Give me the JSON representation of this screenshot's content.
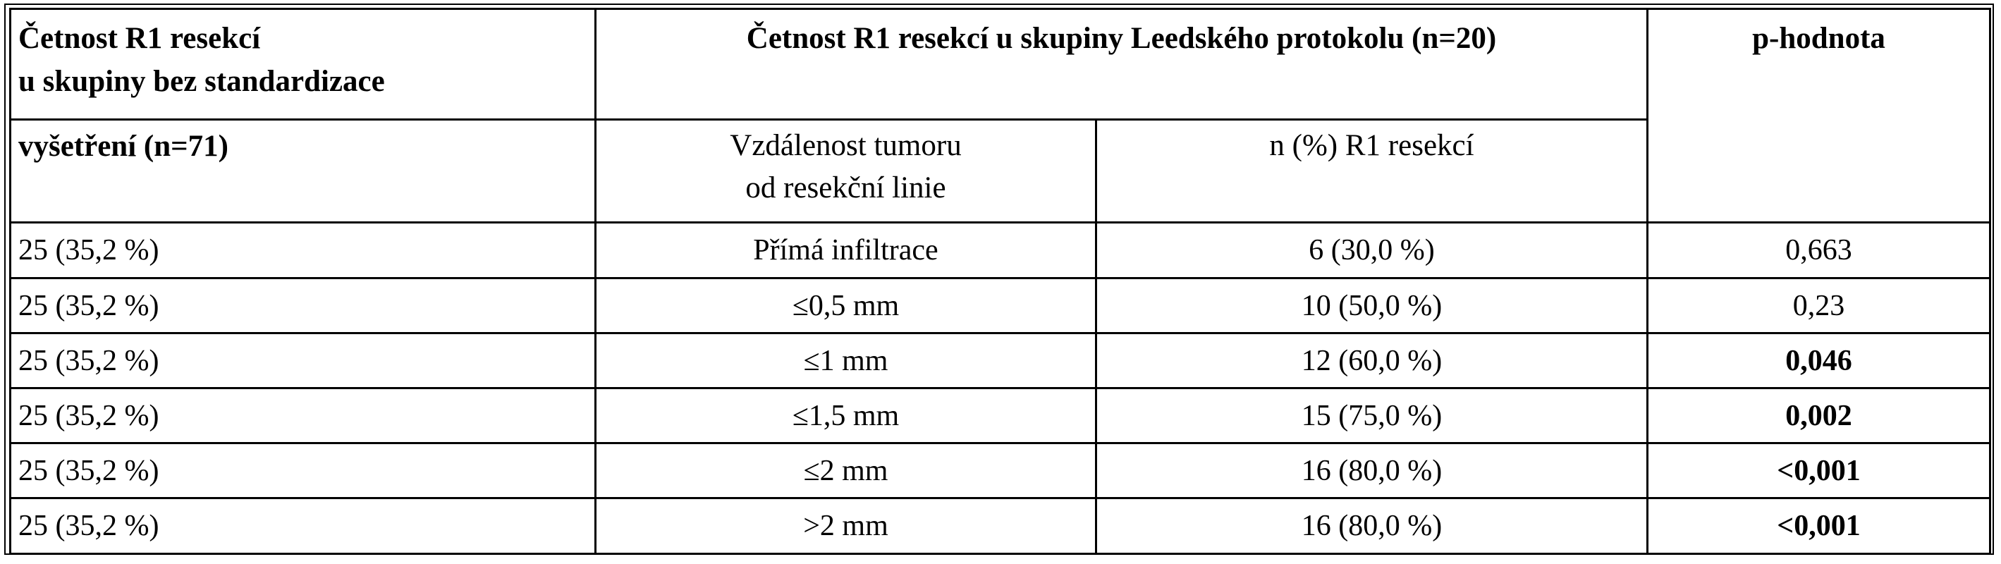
{
  "table": {
    "header": {
      "group1_line1": "Četnost R1 resekcí",
      "group1_line2": "u skupiny bez standardizace",
      "group1_line3": "vyšetření (n=71)",
      "group2": "Četnost R1 resekcí u skupiny Leedského protokolu (n=20)",
      "group3": "p-hodnota",
      "sub_distance_line1": "Vzdálenost tumoru",
      "sub_distance_line2": "od resekční linie",
      "sub_count": "n (%) R1 resekcí"
    },
    "rows": [
      {
        "no_std": "25 (35,2 %)",
        "distance": "Přímá infiltrace",
        "r1": "6 (30,0 %)",
        "p": "0,663",
        "p_bold": false
      },
      {
        "no_std": "25 (35,2 %)",
        "distance": "≤0,5 mm",
        "r1": "10 (50,0 %)",
        "p": "0,23",
        "p_bold": false
      },
      {
        "no_std": "25 (35,2 %)",
        "distance": "≤1 mm",
        "r1": "12 (60,0 %)",
        "p": "0,046",
        "p_bold": true
      },
      {
        "no_std": "25 (35,2 %)",
        "distance": "≤1,5 mm",
        "r1": "15 (75,0 %)",
        "p": "0,002",
        "p_bold": true
      },
      {
        "no_std": "25 (35,2 %)",
        "distance": "≤2 mm",
        "r1": "16 (80,0 %)",
        "p": "<0,001",
        "p_bold": true
      },
      {
        "no_std": "25 (35,2 %)",
        "distance": ">2 mm",
        "r1": "16 (80,0 %)",
        "p": "<0,001",
        "p_bold": true
      }
    ]
  }
}
